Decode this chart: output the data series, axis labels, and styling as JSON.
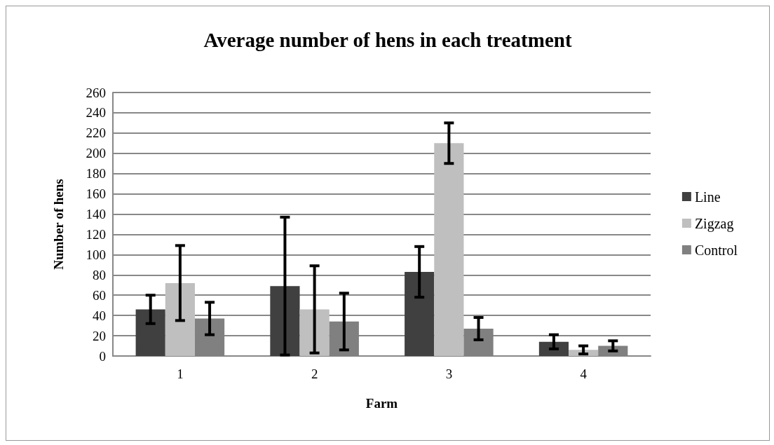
{
  "chart_data": {
    "type": "bar",
    "title": "Average number of hens in each treatment",
    "xlabel": "Farm",
    "ylabel": "Number of hens",
    "categories": [
      "1",
      "2",
      "3",
      "4"
    ],
    "series": [
      {
        "name": "Line",
        "color": "#404040",
        "values": [
          46,
          69,
          83,
          14
        ],
        "errors": [
          14,
          68,
          25,
          7
        ]
      },
      {
        "name": "Zigzag",
        "color": "#bfbfbf",
        "values": [
          72,
          46,
          210,
          6
        ],
        "errors": [
          37,
          43,
          20,
          4
        ]
      },
      {
        "name": "Control",
        "color": "#808080",
        "values": [
          37,
          34,
          27,
          10
        ],
        "errors": [
          16,
          28,
          11,
          5
        ]
      }
    ],
    "ylim": [
      0,
      260
    ],
    "yticks": [
      0,
      20,
      40,
      60,
      80,
      100,
      120,
      140,
      160,
      180,
      200,
      220,
      240,
      260
    ],
    "grid": "y",
    "legend": "right"
  }
}
